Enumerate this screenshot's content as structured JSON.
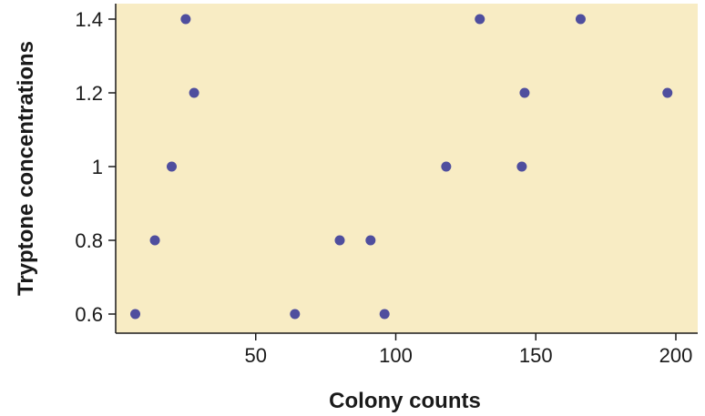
{
  "chart_data": {
    "type": "scatter",
    "title": "",
    "xlabel": "Colony counts",
    "ylabel": "Tryptone concentrations",
    "xlim": [
      0,
      206
    ],
    "ylim": [
      0.6,
      1.4
    ],
    "xticks": [
      50,
      100,
      150,
      200
    ],
    "yticks": [
      0.6,
      0.8,
      1.0,
      1.2,
      1.4
    ],
    "xtick_labels": [
      "50",
      "100",
      "150",
      "200"
    ],
    "ytick_labels": [
      "0.6",
      "0.8",
      "1",
      "1.2",
      "1.4"
    ],
    "grid": false,
    "series": [
      {
        "points": [
          {
            "x": 7,
            "y": 0.6
          },
          {
            "x": 14,
            "y": 0.8
          },
          {
            "x": 20,
            "y": 1.0
          },
          {
            "x": 25,
            "y": 1.4
          },
          {
            "x": 28,
            "y": 1.2
          },
          {
            "x": 64,
            "y": 0.6
          },
          {
            "x": 80,
            "y": 0.8
          },
          {
            "x": 91,
            "y": 0.8
          },
          {
            "x": 96,
            "y": 0.6
          },
          {
            "x": 118,
            "y": 1.0
          },
          {
            "x": 130,
            "y": 1.4
          },
          {
            "x": 145,
            "y": 1.0
          },
          {
            "x": 146,
            "y": 1.2
          },
          {
            "x": 166,
            "y": 1.4
          },
          {
            "x": 197,
            "y": 1.2
          }
        ]
      }
    ]
  },
  "colors": {
    "plot_background": "#f8ecc4",
    "marker": "#4f4e9e",
    "axis": "#1a1a1a",
    "text": "#1a1a1a"
  }
}
